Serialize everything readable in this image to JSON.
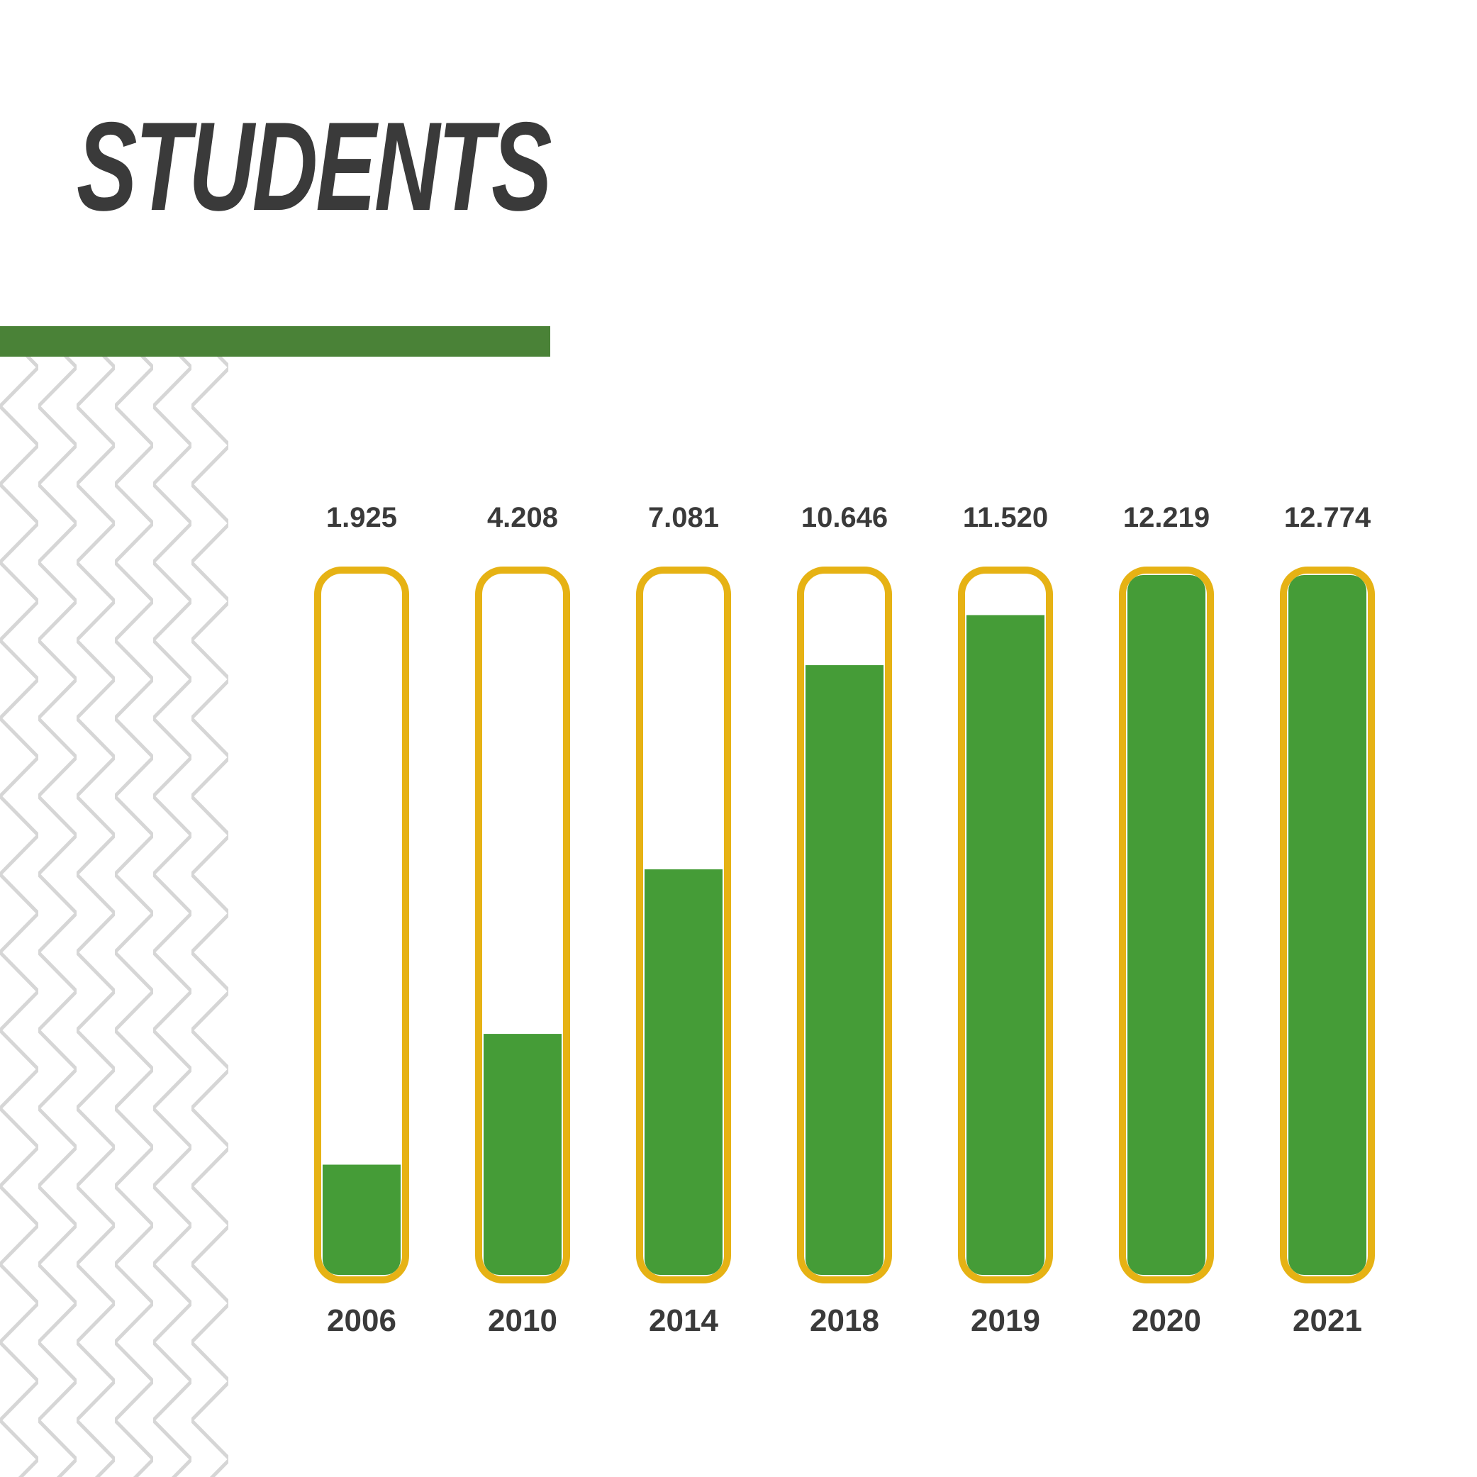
{
  "title": "STUDENTS",
  "colors": {
    "title": "#3a3a3a",
    "accent_rule": "#4a8237",
    "bar_fill": "#459c37",
    "bar_outline": "#e6b214",
    "pattern": "#d6d6d6",
    "text": "#3a3a3a"
  },
  "chart_data": {
    "type": "bar",
    "categories": [
      "2006",
      "2010",
      "2014",
      "2018",
      "2019",
      "2020",
      "2021"
    ],
    "values": [
      1925,
      4208,
      7081,
      10646,
      11520,
      12219,
      12774
    ],
    "value_labels": [
      "1.925",
      "4.208",
      "7.081",
      "10.646",
      "11.520",
      "12.219",
      "12.774"
    ],
    "ylim": [
      0,
      12219
    ],
    "title": "STUDENTS",
    "xlabel": "",
    "ylabel": "",
    "grid": false,
    "legend": "none"
  }
}
